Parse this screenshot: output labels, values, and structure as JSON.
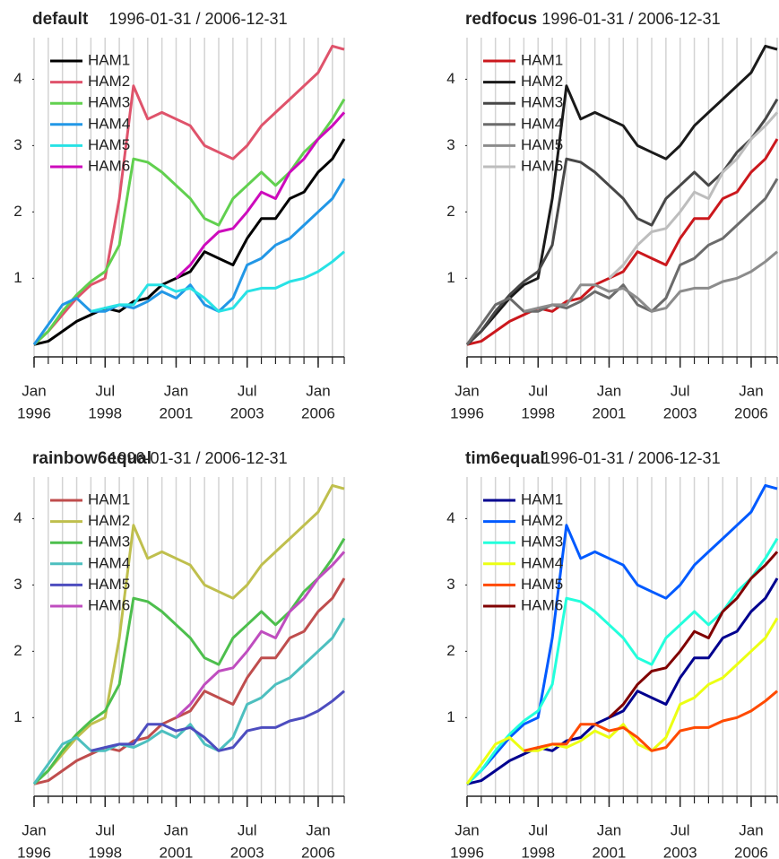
{
  "chart_data": [
    {
      "type": "line",
      "title": "default",
      "subtitle": "1996-01-31 / 2006-12-31",
      "legend": "topleft",
      "grid": true,
      "xlim": [
        "1996-01",
        "2006-12"
      ],
      "ylim": [
        -0.05,
        4.6
      ],
      "yticks": [
        1,
        2,
        3,
        4
      ],
      "xticks": [
        {
          "value": "1996-01",
          "label": [
            "Jan",
            "1996"
          ]
        },
        {
          "value": "1998-07",
          "label": [
            "Jul",
            "1998"
          ]
        },
        {
          "value": "2001-01",
          "label": [
            "Jan",
            "2001"
          ]
        },
        {
          "value": "2003-07",
          "label": [
            "Jul",
            "2003"
          ]
        },
        {
          "value": "2006-01",
          "label": [
            "Jan",
            "2006"
          ]
        }
      ],
      "x": [
        "1996-01",
        "1996-07",
        "1997-01",
        "1997-07",
        "1998-01",
        "1998-07",
        "1999-01",
        "1999-07",
        "2000-01",
        "2000-07",
        "2001-01",
        "2001-07",
        "2002-01",
        "2002-07",
        "2003-01",
        "2003-07",
        "2004-01",
        "2004-07",
        "2005-01",
        "2005-07",
        "2006-01",
        "2006-07",
        "2006-12"
      ],
      "series": [
        {
          "name": "HAM1",
          "color": "#000000",
          "values": [
            0,
            0.05,
            0.2,
            0.35,
            0.45,
            0.55,
            0.5,
            0.65,
            0.7,
            0.9,
            1.0,
            1.1,
            1.4,
            1.3,
            1.2,
            1.6,
            1.9,
            1.9,
            2.2,
            2.3,
            2.6,
            2.8,
            3.1
          ]
        },
        {
          "name": "HAM2",
          "color": "#DF536B",
          "values": [
            0,
            0.2,
            0.45,
            0.7,
            0.9,
            1.0,
            2.2,
            3.9,
            3.4,
            3.5,
            3.4,
            3.3,
            3.0,
            2.9,
            2.8,
            3.0,
            3.3,
            3.5,
            3.7,
            3.9,
            4.1,
            4.5,
            4.45
          ]
        },
        {
          "name": "HAM3",
          "color": "#61D04F",
          "values": [
            0,
            0.2,
            0.5,
            0.75,
            0.95,
            1.1,
            1.5,
            2.8,
            2.75,
            2.6,
            2.4,
            2.2,
            1.9,
            1.8,
            2.2,
            2.4,
            2.6,
            2.4,
            2.6,
            2.9,
            3.1,
            3.4,
            3.7
          ]
        },
        {
          "name": "HAM4",
          "color": "#2297E6",
          "values": [
            0,
            0.3,
            0.6,
            0.7,
            0.5,
            0.5,
            0.6,
            0.55,
            0.65,
            0.8,
            0.7,
            0.9,
            0.6,
            0.5,
            0.7,
            1.2,
            1.3,
            1.5,
            1.6,
            1.8,
            2.0,
            2.2,
            2.5
          ]
        },
        {
          "name": "HAM5",
          "color": "#28E2E5",
          "values": [
            null,
            null,
            null,
            null,
            0.5,
            0.55,
            0.6,
            0.6,
            0.9,
            0.9,
            0.8,
            0.85,
            0.7,
            0.5,
            0.55,
            0.8,
            0.85,
            0.85,
            0.95,
            1.0,
            1.1,
            1.25,
            1.4
          ]
        },
        {
          "name": "HAM6",
          "color": "#CD0BBC",
          "values": [
            null,
            null,
            null,
            null,
            null,
            null,
            null,
            null,
            null,
            null,
            1.0,
            1.2,
            1.5,
            1.7,
            1.75,
            2.0,
            2.3,
            2.2,
            2.6,
            2.8,
            3.1,
            3.3,
            3.5
          ]
        }
      ]
    },
    {
      "type": "line",
      "title": "redfocus",
      "subtitle": "1996-01-31 / 2006-12-31",
      "legend": "topleft",
      "grid": true,
      "xlim": [
        "1996-01",
        "2006-12"
      ],
      "ylim": [
        -0.05,
        4.6
      ],
      "yticks": [
        1,
        2,
        3,
        4
      ],
      "xticks": [
        {
          "value": "1996-01",
          "label": [
            "Jan",
            "1996"
          ]
        },
        {
          "value": "1998-07",
          "label": [
            "Jul",
            "1998"
          ]
        },
        {
          "value": "2001-01",
          "label": [
            "Jan",
            "2001"
          ]
        },
        {
          "value": "2003-07",
          "label": [
            "Jul",
            "2003"
          ]
        },
        {
          "value": "2006-01",
          "label": [
            "Jan",
            "2006"
          ]
        }
      ],
      "x": [
        "1996-01",
        "1996-07",
        "1997-01",
        "1997-07",
        "1998-01",
        "1998-07",
        "1999-01",
        "1999-07",
        "2000-01",
        "2000-07",
        "2001-01",
        "2001-07",
        "2002-01",
        "2002-07",
        "2003-01",
        "2003-07",
        "2004-01",
        "2004-07",
        "2005-01",
        "2005-07",
        "2006-01",
        "2006-07",
        "2006-12"
      ],
      "series": [
        {
          "name": "HAM1",
          "color": "#CB181D",
          "values": [
            0,
            0.05,
            0.2,
            0.35,
            0.45,
            0.55,
            0.5,
            0.65,
            0.7,
            0.9,
            1.0,
            1.1,
            1.4,
            1.3,
            1.2,
            1.6,
            1.9,
            1.9,
            2.2,
            2.3,
            2.6,
            2.8,
            3.1
          ]
        },
        {
          "name": "HAM2",
          "color": "#1A1A1A",
          "values": [
            0,
            0.2,
            0.45,
            0.7,
            0.9,
            1.0,
            2.2,
            3.9,
            3.4,
            3.5,
            3.4,
            3.3,
            3.0,
            2.9,
            2.8,
            3.0,
            3.3,
            3.5,
            3.7,
            3.9,
            4.1,
            4.5,
            4.45
          ]
        },
        {
          "name": "HAM3",
          "color": "#474747",
          "values": [
            0,
            0.2,
            0.5,
            0.75,
            0.95,
            1.1,
            1.5,
            2.8,
            2.75,
            2.6,
            2.4,
            2.2,
            1.9,
            1.8,
            2.2,
            2.4,
            2.6,
            2.4,
            2.6,
            2.9,
            3.1,
            3.4,
            3.7
          ]
        },
        {
          "name": "HAM4",
          "color": "#6B6B6B",
          "values": [
            0,
            0.3,
            0.6,
            0.7,
            0.5,
            0.5,
            0.6,
            0.55,
            0.65,
            0.8,
            0.7,
            0.9,
            0.6,
            0.5,
            0.7,
            1.2,
            1.3,
            1.5,
            1.6,
            1.8,
            2.0,
            2.2,
            2.5
          ]
        },
        {
          "name": "HAM5",
          "color": "#8C8C8C",
          "values": [
            null,
            null,
            null,
            null,
            0.5,
            0.55,
            0.6,
            0.6,
            0.9,
            0.9,
            0.8,
            0.85,
            0.7,
            0.5,
            0.55,
            0.8,
            0.85,
            0.85,
            0.95,
            1.0,
            1.1,
            1.25,
            1.4
          ]
        },
        {
          "name": "HAM6",
          "color": "#BDBDBD",
          "values": [
            null,
            null,
            null,
            null,
            null,
            null,
            null,
            null,
            null,
            null,
            1.0,
            1.2,
            1.5,
            1.7,
            1.75,
            2.0,
            2.3,
            2.2,
            2.6,
            2.8,
            3.1,
            3.3,
            3.5
          ]
        }
      ]
    },
    {
      "type": "line",
      "title": "rainbow6equal",
      "subtitle": "1996-01-31 / 2006-12-31",
      "legend": "topleft",
      "grid": true,
      "xlim": [
        "1996-01",
        "2006-12"
      ],
      "ylim": [
        -0.05,
        4.6
      ],
      "yticks": [
        1,
        2,
        3,
        4
      ],
      "xticks": [
        {
          "value": "1996-01",
          "label": [
            "Jan",
            "1996"
          ]
        },
        {
          "value": "1998-07",
          "label": [
            "Jul",
            "1998"
          ]
        },
        {
          "value": "2001-01",
          "label": [
            "Jan",
            "2001"
          ]
        },
        {
          "value": "2003-07",
          "label": [
            "Jul",
            "2003"
          ]
        },
        {
          "value": "2006-01",
          "label": [
            "Jan",
            "2006"
          ]
        }
      ],
      "x": [
        "1996-01",
        "1996-07",
        "1997-01",
        "1997-07",
        "1998-01",
        "1998-07",
        "1999-01",
        "1999-07",
        "2000-01",
        "2000-07",
        "2001-01",
        "2001-07",
        "2002-01",
        "2002-07",
        "2003-01",
        "2003-07",
        "2004-01",
        "2004-07",
        "2005-01",
        "2005-07",
        "2006-01",
        "2006-07",
        "2006-12"
      ],
      "series": [
        {
          "name": "HAM1",
          "color": "#BF4D4D",
          "values": [
            0,
            0.05,
            0.2,
            0.35,
            0.45,
            0.55,
            0.5,
            0.65,
            0.7,
            0.9,
            1.0,
            1.1,
            1.4,
            1.3,
            1.2,
            1.6,
            1.9,
            1.9,
            2.2,
            2.3,
            2.6,
            2.8,
            3.1
          ]
        },
        {
          "name": "HAM2",
          "color": "#BFBF4D",
          "values": [
            0,
            0.2,
            0.45,
            0.7,
            0.9,
            1.0,
            2.2,
            3.9,
            3.4,
            3.5,
            3.4,
            3.3,
            3.0,
            2.9,
            2.8,
            3.0,
            3.3,
            3.5,
            3.7,
            3.9,
            4.1,
            4.5,
            4.45
          ]
        },
        {
          "name": "HAM3",
          "color": "#4DBF4D",
          "values": [
            0,
            0.2,
            0.5,
            0.75,
            0.95,
            1.1,
            1.5,
            2.8,
            2.75,
            2.6,
            2.4,
            2.2,
            1.9,
            1.8,
            2.2,
            2.4,
            2.6,
            2.4,
            2.6,
            2.9,
            3.1,
            3.4,
            3.7
          ]
        },
        {
          "name": "HAM4",
          "color": "#4DBFBF",
          "values": [
            0,
            0.3,
            0.6,
            0.7,
            0.5,
            0.5,
            0.6,
            0.55,
            0.65,
            0.8,
            0.7,
            0.9,
            0.6,
            0.5,
            0.7,
            1.2,
            1.3,
            1.5,
            1.6,
            1.8,
            2.0,
            2.2,
            2.5
          ]
        },
        {
          "name": "HAM5",
          "color": "#4D4DBF",
          "values": [
            null,
            null,
            null,
            null,
            0.5,
            0.55,
            0.6,
            0.6,
            0.9,
            0.9,
            0.8,
            0.85,
            0.7,
            0.5,
            0.55,
            0.8,
            0.85,
            0.85,
            0.95,
            1.0,
            1.1,
            1.25,
            1.4
          ]
        },
        {
          "name": "HAM6",
          "color": "#BF4DBF",
          "values": [
            null,
            null,
            null,
            null,
            null,
            null,
            null,
            null,
            null,
            null,
            1.0,
            1.2,
            1.5,
            1.7,
            1.75,
            2.0,
            2.3,
            2.2,
            2.6,
            2.8,
            3.1,
            3.3,
            3.5
          ]
        }
      ]
    },
    {
      "type": "line",
      "title": "tim6equal",
      "subtitle": "1996-01-31 / 2006-12-31",
      "legend": "topleft",
      "grid": true,
      "xlim": [
        "1996-01",
        "2006-12"
      ],
      "ylim": [
        -0.05,
        4.6
      ],
      "yticks": [
        1,
        2,
        3,
        4
      ],
      "xticks": [
        {
          "value": "1996-01",
          "label": [
            "Jan",
            "1996"
          ]
        },
        {
          "value": "1998-07",
          "label": [
            "Jul",
            "1998"
          ]
        },
        {
          "value": "2001-01",
          "label": [
            "Jan",
            "2001"
          ]
        },
        {
          "value": "2003-07",
          "label": [
            "Jul",
            "2003"
          ]
        },
        {
          "value": "2006-01",
          "label": [
            "Jan",
            "2006"
          ]
        }
      ],
      "x": [
        "1996-01",
        "1996-07",
        "1997-01",
        "1997-07",
        "1998-01",
        "1998-07",
        "1999-01",
        "1999-07",
        "2000-01",
        "2000-07",
        "2001-01",
        "2001-07",
        "2002-01",
        "2002-07",
        "2003-01",
        "2003-07",
        "2004-01",
        "2004-07",
        "2005-01",
        "2005-07",
        "2006-01",
        "2006-07",
        "2006-12"
      ],
      "series": [
        {
          "name": "HAM1",
          "color": "#00008F",
          "values": [
            0,
            0.05,
            0.2,
            0.35,
            0.45,
            0.55,
            0.5,
            0.65,
            0.7,
            0.9,
            1.0,
            1.1,
            1.4,
            1.3,
            1.2,
            1.6,
            1.9,
            1.9,
            2.2,
            2.3,
            2.6,
            2.8,
            3.1
          ]
        },
        {
          "name": "HAM2",
          "color": "#005AFF",
          "values": [
            0,
            0.2,
            0.45,
            0.7,
            0.9,
            1.0,
            2.2,
            3.9,
            3.4,
            3.5,
            3.4,
            3.3,
            3.0,
            2.9,
            2.8,
            3.0,
            3.3,
            3.5,
            3.7,
            3.9,
            4.1,
            4.5,
            4.45
          ]
        },
        {
          "name": "HAM3",
          "color": "#23FFDC",
          "values": [
            0,
            0.2,
            0.5,
            0.75,
            0.95,
            1.1,
            1.5,
            2.8,
            2.75,
            2.6,
            2.4,
            2.2,
            1.9,
            1.8,
            2.2,
            2.4,
            2.6,
            2.4,
            2.6,
            2.9,
            3.1,
            3.4,
            3.7
          ]
        },
        {
          "name": "HAM4",
          "color": "#ECFF13",
          "values": [
            0,
            0.3,
            0.6,
            0.7,
            0.5,
            0.5,
            0.6,
            0.55,
            0.65,
            0.8,
            0.7,
            0.9,
            0.6,
            0.5,
            0.7,
            1.2,
            1.3,
            1.5,
            1.6,
            1.8,
            2.0,
            2.2,
            2.5
          ]
        },
        {
          "name": "HAM5",
          "color": "#FF4A00",
          "values": [
            null,
            null,
            null,
            null,
            0.5,
            0.55,
            0.6,
            0.6,
            0.9,
            0.9,
            0.8,
            0.85,
            0.7,
            0.5,
            0.55,
            0.8,
            0.85,
            0.85,
            0.95,
            1.0,
            1.1,
            1.25,
            1.4
          ]
        },
        {
          "name": "HAM6",
          "color": "#800000",
          "values": [
            null,
            null,
            null,
            null,
            null,
            null,
            null,
            null,
            null,
            null,
            1.0,
            1.2,
            1.5,
            1.7,
            1.75,
            2.0,
            2.3,
            2.2,
            2.6,
            2.8,
            3.1,
            3.3,
            3.5
          ]
        }
      ]
    }
  ]
}
